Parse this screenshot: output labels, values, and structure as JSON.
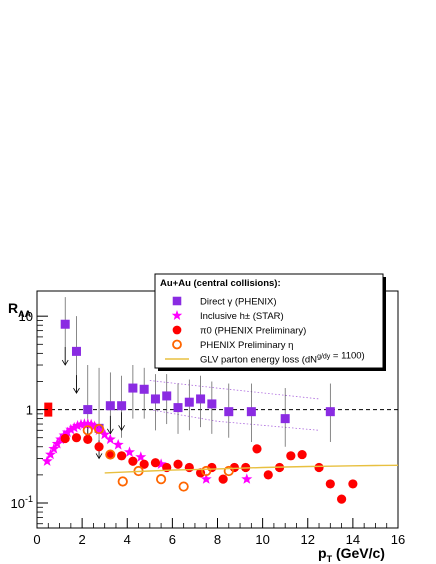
{
  "chart_data": {
    "type": "scatter",
    "title": "",
    "xlabel": "p_T (GeV/c)",
    "ylabel": "R_AA",
    "xlim": [
      0,
      16
    ],
    "ylim": [
      0.05,
      20
    ],
    "yscale": "log",
    "x_ticks": [
      0,
      2,
      4,
      6,
      8,
      10,
      12,
      14,
      16
    ],
    "y_ticks": [
      {
        "value": 10,
        "label": "10"
      },
      {
        "value": 1,
        "label": "1"
      },
      {
        "value": 0.1,
        "label": "10^-1"
      }
    ],
    "reference_line": {
      "y": 1,
      "style": "dashed"
    },
    "legend": {
      "title": "Au+Au (central collisions):",
      "placement": "top-right",
      "entries": [
        {
          "label": "Direct γ (PHENIX)",
          "color": "#8a2be2",
          "marker": "square"
        },
        {
          "label": "Inclusive h± (STAR)",
          "color": "#ff00ff",
          "marker": "star"
        },
        {
          "label": "π0 (PHENIX Preliminary)",
          "color": "#ff0000",
          "marker": "circle"
        },
        {
          "label": "PHENIX Preliminary η",
          "color": "#ff6600",
          "marker": "open-circle"
        },
        {
          "label": "GLV parton energy loss (dN^g/dy = 1100)",
          "color": "#e8c040",
          "marker": "line"
        }
      ]
    },
    "series": [
      {
        "name": "Direct γ (PHENIX)",
        "color": "#8a2be2",
        "marker": "square",
        "points": [
          {
            "x": 1.25,
            "y": 8.2,
            "elo": 3.0,
            "ehi": 16.0
          },
          {
            "x": 1.75,
            "y": 4.2,
            "elo": 1.5,
            "ehi": 10.0
          },
          {
            "x": 2.25,
            "y": 1.0,
            "elo": 0.5,
            "ehi": 3.0
          },
          {
            "x": 2.75,
            "y": 0.63,
            "elo": 0.45,
            "ehi": 2.8
          },
          {
            "x": 3.25,
            "y": 1.1,
            "elo": 0.55,
            "ehi": 2.5
          },
          {
            "x": 3.75,
            "y": 1.1,
            "elo": 0.5,
            "ehi": 2.3
          },
          {
            "x": 4.25,
            "y": 1.7,
            "elo": 0.8,
            "ehi": 3.0
          },
          {
            "x": 4.75,
            "y": 1.65,
            "elo": 0.8,
            "ehi": 2.8
          },
          {
            "x": 5.25,
            "y": 1.3,
            "elo": 0.6,
            "ehi": 2.4
          },
          {
            "x": 5.75,
            "y": 1.4,
            "elo": 0.7,
            "ehi": 2.4
          },
          {
            "x": 6.25,
            "y": 1.05,
            "elo": 0.55,
            "ehi": 1.9
          },
          {
            "x": 6.75,
            "y": 1.2,
            "elo": 0.6,
            "ehi": 2.1
          },
          {
            "x": 7.25,
            "y": 1.3,
            "elo": 0.65,
            "ehi": 2.3
          },
          {
            "x": 7.75,
            "y": 1.15,
            "elo": 0.55,
            "ehi": 2.0
          },
          {
            "x": 8.5,
            "y": 0.95,
            "elo": 0.5,
            "ehi": 1.9
          },
          {
            "x": 9.5,
            "y": 0.95,
            "elo": 0.45,
            "ehi": 1.9
          },
          {
            "x": 11.0,
            "y": 0.8,
            "elo": 0.4,
            "ehi": 1.7
          },
          {
            "x": 13.0,
            "y": 0.95,
            "elo": 0.45,
            "ehi": 1.9
          }
        ],
        "upper_limits": [
          {
            "x": 1.25,
            "y": 3.0
          },
          {
            "x": 1.75,
            "y": 1.5
          },
          {
            "x": 2.25,
            "y": 0.5
          },
          {
            "x": 2.75,
            "y": 0.3
          },
          {
            "x": 3.25,
            "y": 0.55
          },
          {
            "x": 3.75,
            "y": 0.6
          }
        ]
      },
      {
        "name": "Inclusive h± (STAR)",
        "color": "#ff00ff",
        "marker": "star",
        "points": [
          {
            "x": 0.45,
            "y": 0.28
          },
          {
            "x": 0.6,
            "y": 0.33
          },
          {
            "x": 0.75,
            "y": 0.38
          },
          {
            "x": 0.9,
            "y": 0.43
          },
          {
            "x": 1.05,
            "y": 0.48
          },
          {
            "x": 1.2,
            "y": 0.53
          },
          {
            "x": 1.35,
            "y": 0.57
          },
          {
            "x": 1.5,
            "y": 0.61
          },
          {
            "x": 1.65,
            "y": 0.64
          },
          {
            "x": 1.8,
            "y": 0.67
          },
          {
            "x": 1.95,
            "y": 0.69
          },
          {
            "x": 2.1,
            "y": 0.7
          },
          {
            "x": 2.25,
            "y": 0.7
          },
          {
            "x": 2.4,
            "y": 0.69
          },
          {
            "x": 2.55,
            "y": 0.66
          },
          {
            "x": 2.75,
            "y": 0.6
          },
          {
            "x": 3.0,
            "y": 0.54
          },
          {
            "x": 3.25,
            "y": 0.48
          },
          {
            "x": 3.6,
            "y": 0.42
          },
          {
            "x": 4.1,
            "y": 0.35
          },
          {
            "x": 4.6,
            "y": 0.31
          },
          {
            "x": 5.5,
            "y": 0.26
          },
          {
            "x": 7.5,
            "y": 0.18
          },
          {
            "x": 9.3,
            "y": 0.18
          }
        ]
      },
      {
        "name": "π0 (PHENIX Preliminary)",
        "color": "#ff0000",
        "marker": "circle",
        "points": [
          {
            "x": 1.25,
            "y": 0.49
          },
          {
            "x": 1.75,
            "y": 0.5
          },
          {
            "x": 2.25,
            "y": 0.48
          },
          {
            "x": 2.75,
            "y": 0.4
          },
          {
            "x": 3.25,
            "y": 0.33
          },
          {
            "x": 3.75,
            "y": 0.32
          },
          {
            "x": 4.25,
            "y": 0.28
          },
          {
            "x": 4.75,
            "y": 0.26
          },
          {
            "x": 5.25,
            "y": 0.27
          },
          {
            "x": 5.75,
            "y": 0.24
          },
          {
            "x": 6.25,
            "y": 0.26
          },
          {
            "x": 6.75,
            "y": 0.24
          },
          {
            "x": 7.25,
            "y": 0.21
          },
          {
            "x": 7.75,
            "y": 0.24
          },
          {
            "x": 8.25,
            "y": 0.18
          },
          {
            "x": 8.75,
            "y": 0.24
          },
          {
            "x": 9.25,
            "y": 0.24
          },
          {
            "x": 9.75,
            "y": 0.38
          },
          {
            "x": 10.25,
            "y": 0.2
          },
          {
            "x": 10.75,
            "y": 0.24
          },
          {
            "x": 11.25,
            "y": 0.32
          },
          {
            "x": 11.75,
            "y": 0.33
          },
          {
            "x": 12.5,
            "y": 0.24
          },
          {
            "x": 13.0,
            "y": 0.16
          },
          {
            "x": 13.5,
            "y": 0.11
          },
          {
            "x": 14.0,
            "y": 0.16
          }
        ]
      },
      {
        "name": "PHENIX Preliminary η",
        "color": "#ff6600",
        "marker": "open-circle",
        "points": [
          {
            "x": 2.25,
            "y": 0.6
          },
          {
            "x": 2.75,
            "y": 0.62
          },
          {
            "x": 3.25,
            "y": 0.33
          },
          {
            "x": 3.8,
            "y": 0.17
          },
          {
            "x": 4.5,
            "y": 0.22
          },
          {
            "x": 5.5,
            "y": 0.18
          },
          {
            "x": 6.5,
            "y": 0.15
          },
          {
            "x": 7.5,
            "y": 0.22
          },
          {
            "x": 8.5,
            "y": 0.22
          }
        ]
      },
      {
        "name": "GLV parton energy loss (dN^g/dy = 1100)",
        "color": "#e8c040",
        "marker": "line",
        "points": [
          {
            "x": 3.0,
            "y": 0.21
          },
          {
            "x": 4.0,
            "y": 0.215
          },
          {
            "x": 5.0,
            "y": 0.22
          },
          {
            "x": 6.0,
            "y": 0.225
          },
          {
            "x": 7.0,
            "y": 0.228
          },
          {
            "x": 8.0,
            "y": 0.232
          },
          {
            "x": 9.0,
            "y": 0.236
          },
          {
            "x": 10.0,
            "y": 0.24
          },
          {
            "x": 11.0,
            "y": 0.243
          },
          {
            "x": 12.0,
            "y": 0.246
          },
          {
            "x": 13.0,
            "y": 0.248
          },
          {
            "x": 14.0,
            "y": 0.25
          },
          {
            "x": 15.0,
            "y": 0.252
          },
          {
            "x": 16.0,
            "y": 0.253
          }
        ]
      }
    ],
    "reference_markers": [
      {
        "x": 0.5,
        "y": 1.0,
        "color": "#ff0000",
        "marker": "filled-box"
      }
    ],
    "bands": [
      {
        "color": "#aa66dd",
        "upper": [
          [
            5.0,
            2.05
          ],
          [
            8.0,
            1.7
          ],
          [
            12.5,
            1.3
          ]
        ],
        "lower": [
          [
            5.0,
            1.0
          ],
          [
            8.0,
            0.75
          ],
          [
            12.5,
            0.6
          ]
        ]
      }
    ]
  }
}
